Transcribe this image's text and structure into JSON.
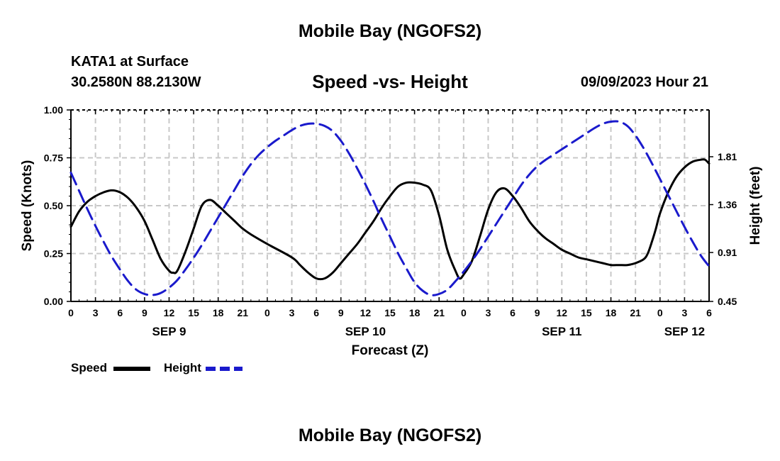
{
  "header": {
    "title": "Mobile Bay (NGOFS2)",
    "station": "KATA1 at Surface",
    "coords": "30.2580N  88.2130W",
    "subtitle": "Speed -vs- Height",
    "datetime": "09/09/2023 Hour 21"
  },
  "legend": {
    "speed_label": "Speed",
    "height_label": "Height"
  },
  "footer": {
    "title": "Mobile Bay (NGOFS2)"
  },
  "colors": {
    "speed": "#000000",
    "height": "#1a1acc",
    "grid": "#c8c8c8"
  },
  "chart_data": {
    "type": "line",
    "title": "Speed -vs- Height",
    "xlabel": "Forecast (Z)",
    "ylabel": "Speed (Knots)",
    "y2label": "Height (feet)",
    "x_unit": "hours since SEP 9 00Z",
    "xlim": [
      0,
      78
    ],
    "ylim": [
      0,
      1
    ],
    "y2lim": [
      0.45,
      2.25
    ],
    "x_tick_step": 3,
    "x_tick_labels": [
      "0",
      "3",
      "6",
      "9",
      "12",
      "15",
      "18",
      "21",
      "0",
      "3",
      "6",
      "9",
      "12",
      "15",
      "18",
      "21",
      "0",
      "3",
      "6",
      "9",
      "12",
      "15",
      "18",
      "21",
      "0",
      "3",
      "6"
    ],
    "y_ticks": [
      0.0,
      0.25,
      0.5,
      0.75,
      1.0
    ],
    "y_tick_labels": [
      "0.00",
      "0.25",
      "0.50",
      "0.75",
      "1.00"
    ],
    "y2_ticks": [
      0.45,
      0.91,
      1.36,
      1.81
    ],
    "y2_tick_labels": [
      "0.45",
      "0.91",
      "1.36",
      "1.81"
    ],
    "date_labels": [
      {
        "x": 12,
        "label": "SEP 9"
      },
      {
        "x": 36,
        "label": "SEP 10"
      },
      {
        "x": 60,
        "label": "SEP 11"
      },
      {
        "x": 75,
        "label": "SEP 12"
      }
    ],
    "series": [
      {
        "name": "Speed",
        "axis": "left",
        "style": "solid",
        "x": [
          0,
          1,
          2,
          3,
          4,
          5,
          6,
          7,
          8,
          9,
          10,
          11,
          12,
          12.5,
          13,
          14,
          15,
          16,
          17,
          18,
          19,
          20,
          21,
          22,
          24,
          27,
          28,
          29,
          30,
          31,
          32,
          33,
          34,
          35,
          36,
          37,
          38,
          39,
          40,
          41,
          42,
          43,
          44,
          45,
          46,
          47,
          47.5,
          48,
          49,
          50,
          51,
          52,
          53,
          54,
          55,
          56,
          57,
          58,
          59,
          60,
          61,
          62,
          63,
          64,
          65,
          66,
          67,
          68,
          69,
          70,
          70.5,
          71,
          71.5,
          72,
          73,
          74,
          75,
          76,
          77,
          77.5,
          78
        ],
        "values": [
          0.39,
          0.47,
          0.52,
          0.55,
          0.57,
          0.58,
          0.57,
          0.54,
          0.49,
          0.42,
          0.32,
          0.22,
          0.16,
          0.15,
          0.16,
          0.26,
          0.38,
          0.5,
          0.53,
          0.5,
          0.46,
          0.42,
          0.38,
          0.35,
          0.3,
          0.23,
          0.19,
          0.15,
          0.12,
          0.12,
          0.15,
          0.2,
          0.25,
          0.3,
          0.36,
          0.42,
          0.49,
          0.55,
          0.6,
          0.62,
          0.62,
          0.61,
          0.58,
          0.45,
          0.27,
          0.16,
          0.12,
          0.14,
          0.21,
          0.34,
          0.48,
          0.57,
          0.59,
          0.55,
          0.49,
          0.42,
          0.37,
          0.33,
          0.3,
          0.27,
          0.25,
          0.23,
          0.22,
          0.21,
          0.2,
          0.19,
          0.19,
          0.19,
          0.2,
          0.22,
          0.25,
          0.31,
          0.38,
          0.46,
          0.57,
          0.65,
          0.7,
          0.73,
          0.74,
          0.74,
          0.72
        ]
      },
      {
        "name": "Height",
        "axis": "right",
        "style": "dashed",
        "x": [
          0,
          1,
          2,
          3,
          4,
          5,
          6,
          7,
          8,
          9,
          10,
          11,
          12,
          13,
          14,
          15,
          16,
          17,
          18,
          19,
          20,
          21,
          22,
          23,
          24,
          25,
          26,
          27,
          28,
          29,
          30,
          31,
          32,
          33,
          34,
          35,
          36,
          37,
          38,
          39,
          40,
          41,
          42,
          43,
          44,
          45,
          46,
          47,
          48,
          49,
          50,
          51,
          52,
          53,
          54,
          55,
          56,
          57,
          58,
          59,
          60,
          61,
          62,
          63,
          64,
          65,
          66,
          67,
          68,
          69,
          70,
          71,
          72,
          73,
          74,
          75,
          76,
          77,
          78
        ],
        "values": [
          1.66,
          1.49,
          1.32,
          1.16,
          1.01,
          0.87,
          0.75,
          0.64,
          0.56,
          0.52,
          0.51,
          0.53,
          0.58,
          0.65,
          0.75,
          0.86,
          0.98,
          1.11,
          1.24,
          1.37,
          1.5,
          1.63,
          1.74,
          1.83,
          1.9,
          1.96,
          2.01,
          2.06,
          2.1,
          2.12,
          2.12,
          2.1,
          2.05,
          1.96,
          1.84,
          1.7,
          1.55,
          1.39,
          1.22,
          1.06,
          0.9,
          0.76,
          0.63,
          0.55,
          0.51,
          0.52,
          0.56,
          0.64,
          0.73,
          0.83,
          0.94,
          1.06,
          1.18,
          1.3,
          1.42,
          1.54,
          1.64,
          1.72,
          1.78,
          1.83,
          1.88,
          1.93,
          1.98,
          2.03,
          2.08,
          2.12,
          2.14,
          2.14,
          2.1,
          2.01,
          1.89,
          1.75,
          1.6,
          1.45,
          1.3,
          1.15,
          1.01,
          0.88,
          0.78
        ]
      }
    ]
  }
}
